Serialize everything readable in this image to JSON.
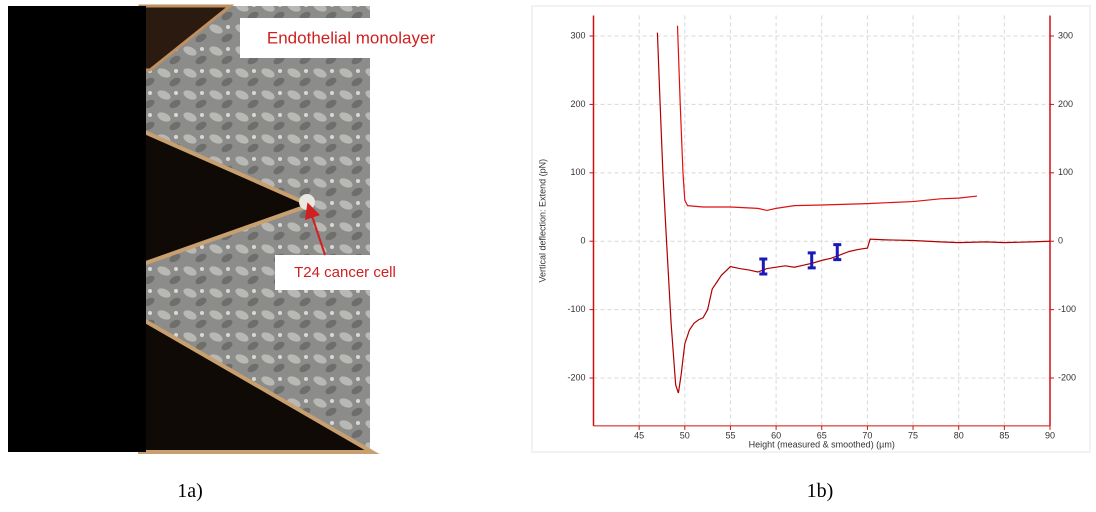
{
  "figure": {
    "image_labels": [
      "Endothelial monolayer",
      "T24 cancer cell"
    ],
    "captions": [
      "1a)",
      "1b)"
    ]
  },
  "chart_data": {
    "type": "line",
    "x_label": "Height (measured & smoothed) (µm)",
    "y_label": "Vertical deflection: Extend (pN)",
    "xlim": [
      40,
      90
    ],
    "xticks": [
      45,
      50,
      55,
      60,
      65,
      70,
      75,
      80,
      85,
      90
    ],
    "ylim": [
      -270,
      330
    ],
    "yticks": [
      -200,
      -100,
      0,
      100,
      200,
      300
    ],
    "y2lim": [
      -270,
      330
    ],
    "y2ticks": [
      -200,
      -100,
      0,
      100,
      200,
      300
    ],
    "grid": true,
    "axis_color": "#d01010",
    "series": [
      {
        "color": "#b00000",
        "x": [
          47,
          47.3,
          47.6,
          48,
          48.5,
          49,
          49.3,
          49.6,
          50,
          50.5,
          51,
          51.5,
          52,
          52.5,
          53,
          53.5,
          54,
          55,
          56,
          57,
          58,
          59,
          60,
          61,
          62,
          63,
          64,
          65,
          66,
          67,
          68,
          69,
          70,
          70.3,
          72,
          75,
          78,
          80,
          83,
          85,
          88,
          90
        ],
        "values": [
          305,
          200,
          100,
          0,
          -120,
          -210,
          -222,
          -195,
          -150,
          -130,
          -120,
          -115,
          -112,
          -100,
          -70,
          -60,
          -50,
          -37,
          -40,
          -42,
          -45,
          -40,
          -38,
          -36,
          -38,
          -35,
          -32,
          -28,
          -25,
          -20,
          -15,
          -12,
          -10,
          3,
          2,
          1,
          -1,
          -2,
          -1,
          -2,
          -1,
          0
        ]
      },
      {
        "color": "#e01010",
        "x": [
          49.2,
          49.5,
          49.8,
          50,
          50.3,
          52,
          55,
          58,
          59,
          60,
          62,
          65,
          70,
          75,
          78,
          80,
          82
        ],
        "values": [
          315,
          200,
          100,
          60,
          52,
          50,
          50,
          48,
          45,
          48,
          52,
          53,
          55,
          58,
          62,
          63,
          66
        ]
      }
    ],
    "markers": {
      "color": "#1a1ab4",
      "x": [
        58.6,
        63.9,
        66.7
      ],
      "values": [
        -37,
        -28,
        -16
      ]
    }
  }
}
